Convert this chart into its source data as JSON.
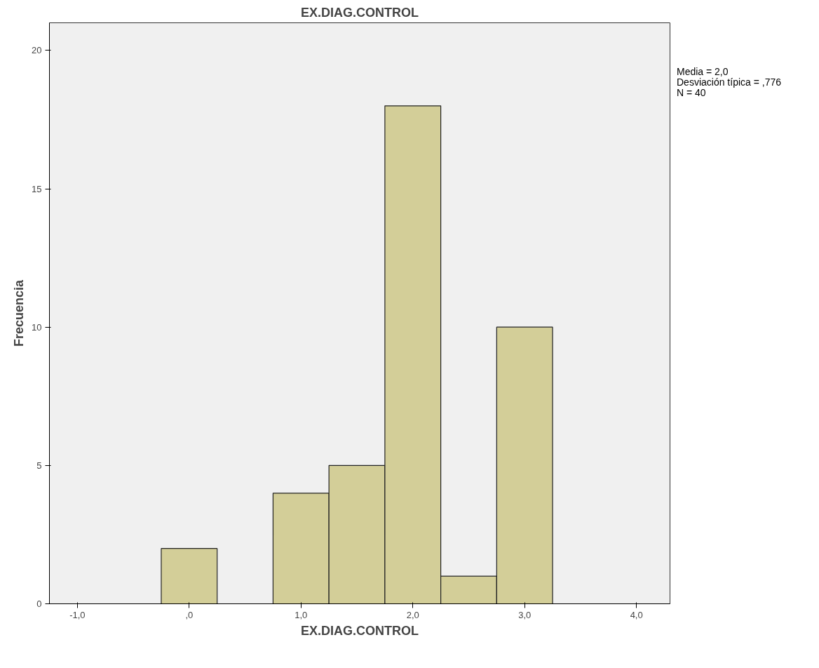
{
  "chart_data": {
    "type": "histogram",
    "title": "EX.DIAG.CONTROL",
    "xlabel": "EX.DIAG.CONTROL",
    "ylabel": "Frecuencia",
    "bins": [
      -0.25,
      0.25,
      0.75,
      1.25,
      1.75,
      2.25,
      2.75,
      3.25
    ],
    "values": [
      2,
      0,
      4,
      5,
      18,
      1,
      10
    ],
    "color": "#d3ce98",
    "xlim": [
      -1.25,
      4.3
    ],
    "ylim": [
      0,
      21
    ],
    "xticks": [
      {
        "value": -1,
        "label": "-1,0"
      },
      {
        "value": 0,
        "label": ",0"
      },
      {
        "value": 1,
        "label": "1,0"
      },
      {
        "value": 2,
        "label": "2,0"
      },
      {
        "value": 3,
        "label": "3,0"
      },
      {
        "value": 4,
        "label": "4,0"
      }
    ],
    "yticks": [
      0,
      5,
      10,
      15,
      20
    ],
    "annotations": [
      "Media = 2,0",
      "Desviación típica = ,776",
      "N = 40"
    ],
    "grid": false
  }
}
